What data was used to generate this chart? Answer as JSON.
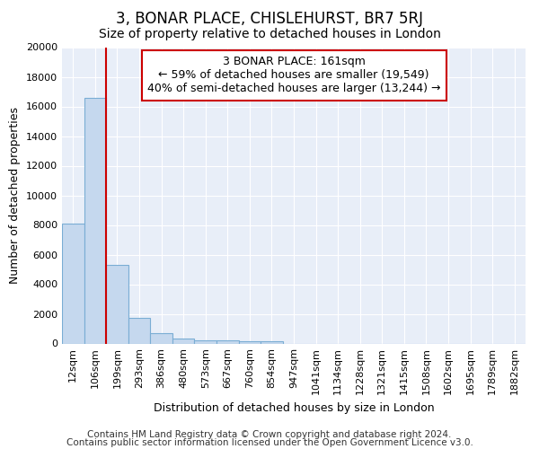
{
  "title": "3, BONAR PLACE, CHISLEHURST, BR7 5RJ",
  "subtitle": "Size of property relative to detached houses in London",
  "xlabel": "Distribution of detached houses by size in London",
  "ylabel": "Number of detached properties",
  "categories": [
    "12sqm",
    "106sqm",
    "199sqm",
    "293sqm",
    "386sqm",
    "480sqm",
    "573sqm",
    "667sqm",
    "760sqm",
    "854sqm",
    "947sqm",
    "1041sqm",
    "1134sqm",
    "1228sqm",
    "1321sqm",
    "1415sqm",
    "1508sqm",
    "1602sqm",
    "1695sqm",
    "1789sqm",
    "1882sqm"
  ],
  "values": [
    8100,
    16600,
    5300,
    1750,
    720,
    360,
    240,
    190,
    170,
    130,
    0,
    0,
    0,
    0,
    0,
    0,
    0,
    0,
    0,
    0,
    0
  ],
  "bar_color": "#c5d8ee",
  "bar_edge_color": "#7aadd4",
  "vline_x_idx": 1.5,
  "vline_color": "#cc0000",
  "annotation_text": "3 BONAR PLACE: 161sqm\n← 59% of detached houses are smaller (19,549)\n40% of semi-detached houses are larger (13,244) →",
  "annotation_box_color": "#ffffff",
  "annotation_box_edge": "#cc0000",
  "ylim": [
    0,
    20000
  ],
  "yticks": [
    0,
    2000,
    4000,
    6000,
    8000,
    10000,
    12000,
    14000,
    16000,
    18000,
    20000
  ],
  "footer1": "Contains HM Land Registry data © Crown copyright and database right 2024.",
  "footer2": "Contains public sector information licensed under the Open Government Licence v3.0.",
  "fig_bg_color": "#ffffff",
  "plot_bg_color": "#e8eef8",
  "grid_color": "#ffffff",
  "title_fontsize": 12,
  "subtitle_fontsize": 10,
  "axis_label_fontsize": 9,
  "tick_fontsize": 8,
  "annotation_fontsize": 9,
  "footer_fontsize": 7.5
}
